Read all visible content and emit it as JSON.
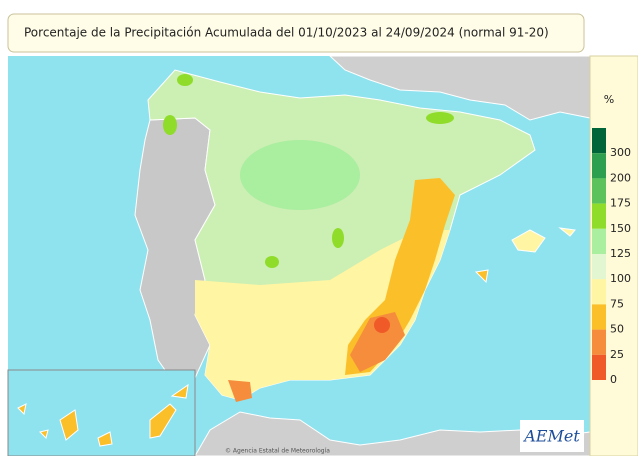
{
  "title": "Porcentaje de la Precipitación Acumulada del 01/10/2023 al 24/09/2024 (normal 91-20)",
  "legend": {
    "unit": "%",
    "ticks": [
      300,
      200,
      175,
      150,
      125,
      100,
      75,
      50,
      25,
      0
    ],
    "colors": [
      "#00663a",
      "#2e9e4f",
      "#5cc35c",
      "#8fdc2a",
      "#aaeea0",
      "#e2f6d2",
      "#fff5a3",
      "#fbbf2a",
      "#f58d3c",
      "#f05a28"
    ]
  },
  "logo": "AEMet",
  "attribution": "© Agencia Estatal de Meteorología"
}
